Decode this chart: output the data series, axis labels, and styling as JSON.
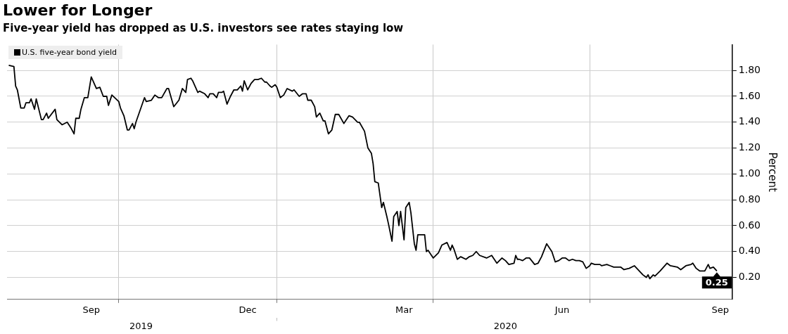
{
  "chart_data": {
    "type": "line",
    "title": "Lower for Longer",
    "subtitle": "Five-year yield has dropped as U.S. investors see rates staying low",
    "ylabel": "Percent",
    "x": [
      "2019-07-29",
      "2019-08-01",
      "2019-08-02",
      "2019-08-03",
      "2019-08-05",
      "2019-08-07",
      "2019-08-08",
      "2019-08-10",
      "2019-08-11",
      "2019-08-13",
      "2019-08-14",
      "2019-08-17",
      "2019-08-18",
      "2019-08-20",
      "2019-08-21",
      "2019-08-25",
      "2019-08-26",
      "2019-08-29",
      "2019-09-01",
      "2019-09-03",
      "2019-09-05",
      "2019-09-06",
      "2019-09-08",
      "2019-09-09",
      "2019-09-11",
      "2019-09-13",
      "2019-09-15",
      "2019-09-18",
      "2019-09-20",
      "2019-09-22",
      "2019-09-24",
      "2019-09-25",
      "2019-09-27",
      "2019-10-01",
      "2019-10-02",
      "2019-10-04",
      "2019-10-06",
      "2019-10-07",
      "2019-10-09",
      "2019-10-10",
      "2019-10-11",
      "2019-10-16",
      "2019-10-17",
      "2019-10-20",
      "2019-10-22",
      "2019-10-24",
      "2019-10-26",
      "2019-10-29",
      "2019-10-30",
      "2019-11-02",
      "2019-11-05",
      "2019-11-07",
      "2019-11-09",
      "2019-11-10",
      "2019-11-12",
      "2019-11-13",
      "2019-11-16",
      "2019-11-17",
      "2019-11-20",
      "2019-11-22",
      "2019-11-23",
      "2019-11-25",
      "2019-11-27",
      "2019-11-28",
      "2019-11-30",
      "2019-12-01",
      "2019-12-03",
      "2019-12-05",
      "2019-12-07",
      "2019-12-09",
      "2019-12-11",
      "2019-12-12",
      "2019-12-13",
      "2019-12-15",
      "2019-12-17",
      "2019-12-19",
      "2019-12-21",
      "2019-12-23",
      "2019-12-25",
      "2019-12-26",
      "2019-12-28",
      "2019-12-29",
      "2019-12-31",
      "2020-01-01",
      "2020-01-03",
      "2020-01-05",
      "2020-01-07",
      "2020-01-10",
      "2020-01-11",
      "2020-01-14",
      "2020-01-16",
      "2020-01-18",
      "2020-01-19",
      "2020-01-21",
      "2020-01-23",
      "2020-01-24",
      "2020-01-26",
      "2020-01-28",
      "2020-01-29",
      "2020-01-31",
      "2020-02-02",
      "2020-02-04",
      "2020-02-06",
      "2020-02-09",
      "2020-02-12",
      "2020-02-14",
      "2020-02-17",
      "2020-02-18",
      "2020-02-21",
      "2020-02-23",
      "2020-02-25",
      "2020-02-26",
      "2020-02-27",
      "2020-02-29",
      "2020-03-02",
      "2020-03-03",
      "2020-03-05",
      "2020-03-06",
      "2020-03-08",
      "2020-03-09",
      "2020-03-11",
      "2020-03-12",
      "2020-03-13",
      "2020-03-15",
      "2020-03-16",
      "2020-03-18",
      "2020-03-19",
      "2020-03-21",
      "2020-03-22",
      "2020-03-23",
      "2020-03-27",
      "2020-03-28",
      "2020-03-29",
      "2020-04-01",
      "2020-04-04",
      "2020-04-06",
      "2020-04-09",
      "2020-04-11",
      "2020-04-12",
      "2020-04-13",
      "2020-04-15",
      "2020-04-17",
      "2020-04-20",
      "2020-04-22",
      "2020-04-24",
      "2020-04-26",
      "2020-04-28",
      "2020-05-02",
      "2020-05-05",
      "2020-05-08",
      "2020-05-11",
      "2020-05-13",
      "2020-05-15",
      "2020-05-18",
      "2020-05-19",
      "2020-05-20",
      "2020-05-21",
      "2020-05-23",
      "2020-05-25",
      "2020-05-27",
      "2020-05-30",
      "2020-06-01",
      "2020-06-03",
      "2020-06-06",
      "2020-06-09",
      "2020-06-11",
      "2020-06-13",
      "2020-06-15",
      "2020-06-17",
      "2020-06-19",
      "2020-06-21",
      "2020-06-23",
      "2020-06-25",
      "2020-06-27",
      "2020-06-29",
      "2020-07-01",
      "2020-07-02",
      "2020-07-04",
      "2020-07-07",
      "2020-07-08",
      "2020-07-11",
      "2020-07-13",
      "2020-07-15",
      "2020-07-19",
      "2020-07-21",
      "2020-07-24",
      "2020-07-27",
      "2020-08-01",
      "2020-08-03",
      "2020-08-04",
      "2020-08-05",
      "2020-08-07",
      "2020-08-08",
      "2020-08-11",
      "2020-08-15",
      "2020-08-17",
      "2020-08-21",
      "2020-08-23",
      "2020-08-26",
      "2020-08-29",
      "2020-08-30",
      "2020-09-01",
      "2020-09-03",
      "2020-09-06",
      "2020-09-08",
      "2020-09-09",
      "2020-09-11",
      "2020-09-13"
    ],
    "series": [
      {
        "name": "U.S. five-year bond yield",
        "color": "#000000",
        "values": [
          1.84,
          1.83,
          1.68,
          1.65,
          1.51,
          1.51,
          1.55,
          1.55,
          1.58,
          1.5,
          1.58,
          1.42,
          1.42,
          1.47,
          1.43,
          1.5,
          1.42,
          1.38,
          1.4,
          1.36,
          1.31,
          1.43,
          1.43,
          1.5,
          1.59,
          1.59,
          1.75,
          1.66,
          1.67,
          1.6,
          1.6,
          1.53,
          1.61,
          1.56,
          1.51,
          1.45,
          1.34,
          1.34,
          1.39,
          1.35,
          1.4,
          1.59,
          1.56,
          1.57,
          1.61,
          1.59,
          1.59,
          1.66,
          1.66,
          1.52,
          1.57,
          1.66,
          1.63,
          1.73,
          1.74,
          1.72,
          1.63,
          1.64,
          1.62,
          1.59,
          1.62,
          1.62,
          1.59,
          1.63,
          1.63,
          1.64,
          1.54,
          1.6,
          1.65,
          1.65,
          1.68,
          1.64,
          1.72,
          1.65,
          1.7,
          1.73,
          1.73,
          1.74,
          1.71,
          1.71,
          1.68,
          1.67,
          1.69,
          1.67,
          1.59,
          1.61,
          1.66,
          1.64,
          1.65,
          1.6,
          1.62,
          1.62,
          1.57,
          1.57,
          1.52,
          1.44,
          1.47,
          1.41,
          1.41,
          1.31,
          1.34,
          1.46,
          1.46,
          1.39,
          1.45,
          1.44,
          1.4,
          1.4,
          1.33,
          1.2,
          1.16,
          1.08,
          0.94,
          0.93,
          0.74,
          0.78,
          0.67,
          0.61,
          0.48,
          0.67,
          0.71,
          0.6,
          0.71,
          0.49,
          0.74,
          0.78,
          0.7,
          0.46,
          0.41,
          0.53,
          0.53,
          0.4,
          0.41,
          0.35,
          0.39,
          0.45,
          0.47,
          0.41,
          0.45,
          0.42,
          0.34,
          0.36,
          0.34,
          0.36,
          0.37,
          0.4,
          0.37,
          0.35,
          0.37,
          0.31,
          0.35,
          0.33,
          0.3,
          0.31,
          0.37,
          0.34,
          0.34,
          0.33,
          0.35,
          0.35,
          0.3,
          0.31,
          0.36,
          0.46,
          0.4,
          0.32,
          0.33,
          0.35,
          0.35,
          0.33,
          0.34,
          0.33,
          0.33,
          0.32,
          0.27,
          0.29,
          0.31,
          0.3,
          0.3,
          0.29,
          0.3,
          0.29,
          0.28,
          0.28,
          0.26,
          0.27,
          0.29,
          0.22,
          0.2,
          0.22,
          0.19,
          0.22,
          0.21,
          0.25,
          0.31,
          0.29,
          0.28,
          0.26,
          0.29,
          0.3,
          0.31,
          0.27,
          0.25,
          0.25,
          0.3,
          0.27,
          0.28,
          0.25
        ],
        "value_labels": [
          null,
          null,
          null,
          null,
          null,
          null,
          null,
          null,
          null,
          null,
          null,
          null,
          null,
          null,
          null,
          null,
          null,
          null,
          null,
          null,
          null,
          null,
          null,
          null,
          null,
          null,
          null,
          null,
          null,
          null,
          null,
          null,
          null,
          null,
          null,
          null,
          null,
          null,
          null,
          null,
          null,
          null,
          null,
          null,
          null,
          null,
          null,
          null,
          null,
          null,
          null,
          null,
          null,
          null,
          null,
          null,
          null,
          null,
          null,
          null,
          null,
          null,
          null,
          null,
          null,
          null,
          null,
          null,
          null,
          null,
          null,
          null,
          null,
          null,
          null,
          null,
          null,
          null,
          null,
          null,
          null,
          null,
          null,
          null,
          null,
          null,
          null,
          null,
          null,
          null,
          null,
          null,
          null,
          null,
          null,
          null,
          null,
          null,
          null,
          null,
          null,
          null,
          null,
          null,
          null,
          null,
          null,
          null,
          null,
          null,
          null,
          null,
          null,
          null,
          null,
          null,
          null,
          null,
          null,
          null,
          null,
          null,
          null,
          null,
          null,
          null,
          null,
          null,
          null,
          null,
          null,
          null,
          null,
          null,
          null,
          null,
          null,
          null,
          null,
          null,
          null,
          null,
          null,
          null,
          null,
          null,
          null,
          null,
          null,
          null,
          null,
          null,
          null,
          null,
          null,
          null,
          null,
          null,
          null,
          null,
          null,
          null,
          null,
          null,
          null,
          null,
          null,
          null,
          null,
          null,
          null,
          null,
          null,
          null,
          null,
          null,
          null,
          null,
          null,
          null,
          null,
          null,
          null,
          null,
          null,
          null,
          null,
          null,
          null,
          null,
          null,
          null,
          null,
          null,
          null,
          null,
          null,
          null,
          null,
          null,
          null,
          null,
          null,
          null,
          null,
          null,
          null,
          "0.25"
        ]
      }
    ],
    "xlim": [
      "2019-07-28",
      "2020-09-22"
    ],
    "xticks": [
      {
        "value": "2019-09-15",
        "label": "Sep"
      },
      {
        "value": "2019-10-01",
        "label": null
      },
      {
        "value": "2019-12-15",
        "label": "Dec"
      },
      {
        "value": "2020-01-01",
        "label": null
      },
      {
        "value": "2020-03-15",
        "label": "Mar"
      },
      {
        "value": "2020-04-01",
        "label": null
      },
      {
        "value": "2020-06-15",
        "label": "Jun"
      },
      {
        "value": "2020-07-01",
        "label": null
      },
      {
        "value": "2020-09-15",
        "label": "Sep"
      }
    ],
    "x2lim": [
      "2019-07-28",
      "2020-09-22"
    ],
    "x2ticks": [
      {
        "value": "2019-10-14",
        "label": "2019"
      },
      {
        "value": "2020-01-01",
        "label": null
      },
      {
        "value": "2020-05-13",
        "label": "2020"
      }
    ],
    "ylim": [
      0.03,
      2.0
    ],
    "yticks": [
      {
        "value": 0.2,
        "label": "0.20"
      },
      {
        "value": 0.4,
        "label": "0.40"
      },
      {
        "value": 0.6,
        "label": "0.60"
      },
      {
        "value": 0.8,
        "label": "0.80"
      },
      {
        "value": 1.0,
        "label": "1.00"
      },
      {
        "value": 1.2,
        "label": "1.20"
      },
      {
        "value": 1.4,
        "label": "1.40"
      },
      {
        "value": 1.6,
        "label": "1.60"
      },
      {
        "value": 1.8,
        "label": "1.80"
      }
    ],
    "grid": true,
    "legend": "top left",
    "marker": "none",
    "line_style": "solid"
  }
}
